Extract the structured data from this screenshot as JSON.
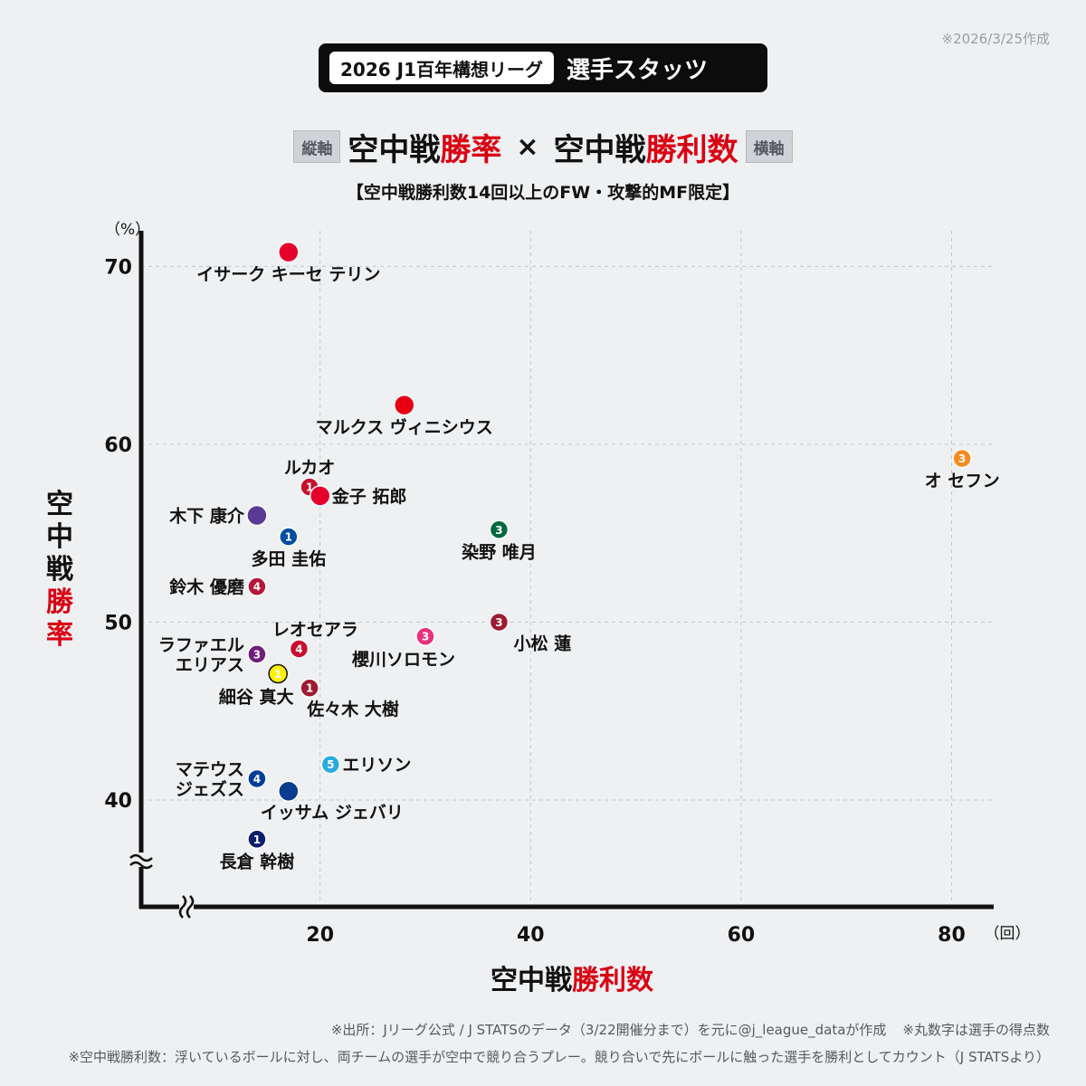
{
  "date_note": "※2026/3/25作成",
  "header": {
    "pill": "2026 J1百年構想リーグ",
    "title": "選手スタッツ"
  },
  "title": {
    "left_tag": "縦軸",
    "part1": "空中戦",
    "part1_red": "勝率",
    "times": "×",
    "part2": "空中戦",
    "part2_red": "勝利数",
    "right_tag": "横軸"
  },
  "subtitle": "【空中戦勝利数14回以上のFW・攻撃的MF限定】",
  "footer": {
    "source": "※出所：Jリーグ公式 / J STATSのデータ（3/22開催分まで）を元に@j_league_dataが作成",
    "note_circle": "※丸数字は選手の得点数",
    "definition": "※空中戦勝利数：浮いているボールに対し、両チームの選手が空中で競り合うプレー。競り合いで先にボールに触った選手を勝利としてカウント（J STATSより）"
  },
  "chart_data": {
    "type": "scatter",
    "xlabel": "空中戦",
    "xlabel_red": "勝利数",
    "ylabel": "空中戦",
    "ylabel_red": "勝率",
    "x_unit": "（回）",
    "y_unit": "（%）",
    "xlim": [
      3,
      84
    ],
    "ylim": [
      34,
      72
    ],
    "xticks": [
      20,
      40,
      60,
      80
    ],
    "yticks": [
      40,
      50,
      60,
      70
    ],
    "grid": true,
    "axis_break": true,
    "points": [
      {
        "name": "イサーク キーセ テリン",
        "x": 17,
        "y": 70.8,
        "goals": "",
        "color": "#e4002b",
        "label_pos": "below"
      },
      {
        "name": "マルクス ヴィニシウス",
        "x": 28,
        "y": 62.2,
        "goals": "",
        "color": "#e60012",
        "label_pos": "below"
      },
      {
        "name": "オ セフン",
        "x": 81,
        "y": 59.2,
        "goals": "3",
        "color": "#f68b1f",
        "label_pos": "below"
      },
      {
        "name": "ルカオ",
        "x": 19,
        "y": 57.6,
        "goals": "1",
        "color": "#c8102e",
        "label_pos": "above"
      },
      {
        "name": "金子 拓郎",
        "x": 20,
        "y": 57.1,
        "goals": "",
        "color": "#e4002b",
        "label_pos": "right"
      },
      {
        "name": "木下 康介",
        "x": 14,
        "y": 56.0,
        "goals": "",
        "color": "#5b3a96",
        "label_pos": "left"
      },
      {
        "name": "多田 圭佑",
        "x": 17,
        "y": 54.8,
        "goals": "1",
        "color": "#004ea2",
        "label_pos": "below"
      },
      {
        "name": "染野 唯月",
        "x": 37,
        "y": 55.2,
        "goals": "3",
        "color": "#00693e",
        "label_pos": "below"
      },
      {
        "name": "鈴木 優磨",
        "x": 14,
        "y": 52.0,
        "goals": "4",
        "color": "#b5173b",
        "label_pos": "left"
      },
      {
        "name": "小松 蓮",
        "x": 37,
        "y": 50.0,
        "goals": "3",
        "color": "#9e1b32",
        "label_pos": "below-right"
      },
      {
        "name": "櫻川ソロモン",
        "x": 30,
        "y": 49.2,
        "goals": "3",
        "color": "#e6317f",
        "label_pos": "below-left"
      },
      {
        "name": "レオセアラ",
        "x": 18,
        "y": 48.5,
        "goals": "4",
        "color": "#c8102e",
        "label_pos": "above-right"
      },
      {
        "name": "ラファエル エリアス",
        "x": 14,
        "y": 48.2,
        "goals": "3",
        "color": "#6f1e7a",
        "label_pos": "left"
      },
      {
        "name": "細谷 真大",
        "x": 16,
        "y": 47.1,
        "goals": "1",
        "color": "#fff000",
        "label_pos": "below-left"
      },
      {
        "name": "佐々木 大樹",
        "x": 19,
        "y": 46.3,
        "goals": "1",
        "color": "#9e1b32",
        "label_pos": "below-right"
      },
      {
        "name": "エリソン",
        "x": 21,
        "y": 42.0,
        "goals": "5",
        "color": "#29abe2",
        "label_pos": "right"
      },
      {
        "name": "マテウス ジェズス",
        "x": 14,
        "y": 41.2,
        "goals": "4",
        "color": "#003f98",
        "label_pos": "left"
      },
      {
        "name": "イッサム ジェバリ",
        "x": 17,
        "y": 40.5,
        "goals": "",
        "color": "#0a3d8f",
        "label_pos": "below-right"
      },
      {
        "name": "長倉 幹樹",
        "x": 14,
        "y": 37.8,
        "goals": "1",
        "color": "#0d1f6b",
        "label_pos": "below"
      }
    ]
  }
}
